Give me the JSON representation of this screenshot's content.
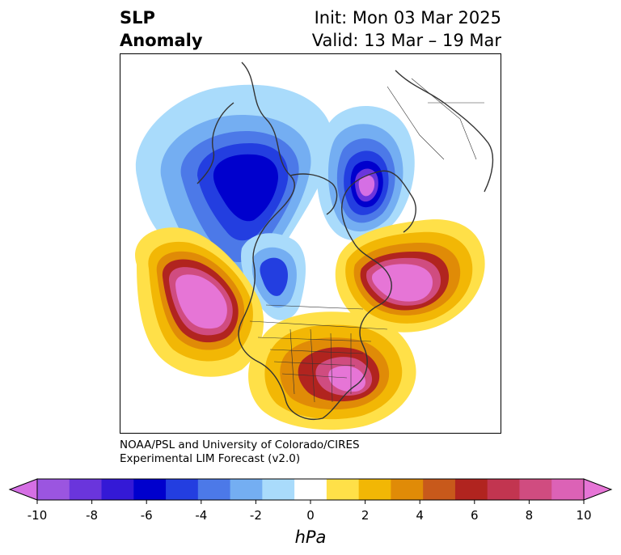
{
  "title": {
    "left_line1": "SLP",
    "left_line2": "Anomaly",
    "right_line1": "Init: Mon 03 Mar 2025",
    "right_line2": "Valid: 13 Mar – 19 Mar"
  },
  "credit": {
    "line1": "NOAA/PSL and University of Colorado/CIRES",
    "line2": "Experimental LIM Forecast (v2.0)"
  },
  "colorbar": {
    "unit_label": "hPa",
    "ticks": [
      "-10",
      "-8",
      "-6",
      "-4",
      "-2",
      "0",
      "2",
      "4",
      "6",
      "8",
      "10"
    ],
    "colors": [
      "#d56fe4",
      "#9b55e0",
      "#6a35dc",
      "#3419d6",
      "#0000cd",
      "#233ee0",
      "#4c79e8",
      "#74aef2",
      "#a9dbfb",
      "#ffffff",
      "#ffe048",
      "#f2b705",
      "#e08b07",
      "#c8591b",
      "#b1241f",
      "#c23550",
      "#d04c80",
      "#dc62b6",
      "#e675d6"
    ]
  },
  "map": {
    "projection": "polar stereographic, North America / North Atlantic",
    "features": [
      {
        "name": "north-pacific-high",
        "sign": "positive"
      },
      {
        "name": "southeast-us-high",
        "sign": "positive"
      },
      {
        "name": "north-atlantic-high",
        "sign": "positive"
      },
      {
        "name": "greenland-low",
        "sign": "negative"
      },
      {
        "name": "siberia-alaska-low",
        "sign": "negative"
      },
      {
        "name": "canada-low",
        "sign": "negative"
      }
    ]
  }
}
